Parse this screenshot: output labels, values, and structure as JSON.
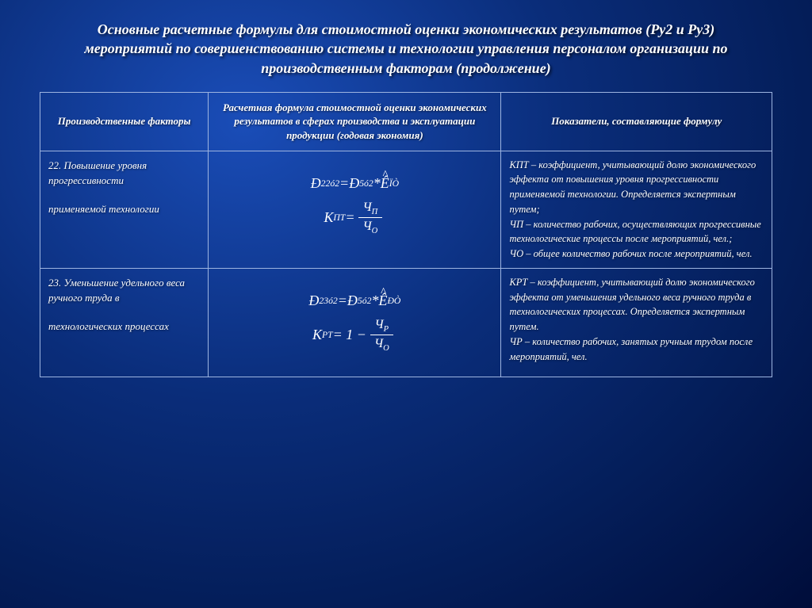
{
  "title": "Основные расчетные формулы для стоимостной оценки экономических результатов (Ру2 и Ру3) мероприятий по совершенствованию системы и технологии управления персоналом организации по производственным факторам (продолжение)",
  "headers": {
    "col1": "Производственные факторы",
    "col2": "Расчетная формула стоимостной оценки экономических результатов в сферах производства и эксплуатации продукции (годовая экономия)",
    "col3": "Показатели, составляющие формулу"
  },
  "rows": [
    {
      "factor_num": "22. Повышение уровня прогрессивности",
      "factor_sub": "применяемой технологии",
      "formula1_left": "Đ",
      "formula1_left_sup": "22",
      "formula1_left_sub": "ó2",
      "formula1_eq": " = ",
      "formula1_mid": "Đ",
      "formula1_mid_sup": "5",
      "formula1_mid_sub": "ó2",
      "formula1_star": " * ",
      "formula1_right": "Ê",
      "formula1_right_sub": " ÏÒ",
      "formula2_left": "К",
      "formula2_left_sub": "ПТ",
      "formula2_eq": " = ",
      "formula2_num": "Ч",
      "formula2_num_sub": "П",
      "formula2_den": "Ч",
      "formula2_den_sub": "О",
      "indicator": "КПТ – коэффициент, учитывающий долю экономического эффекта от повышения уровня прогрессивности применяемой технологии. Определяется экспертным путем;\nЧП – количество рабочих, осуществляющих прогрессивные технологические процессы после мероприятий, чел.;\nЧО – общее количество рабочих после мероприятий, чел."
    },
    {
      "factor_num": "23. Уменьшение удельного веса ручного труда в",
      "factor_sub": "технологических процессах",
      "formula1_left": "Đ",
      "formula1_left_sup": "23",
      "formula1_left_sub": "ó2",
      "formula1_eq": " = ",
      "formula1_mid": "Đ",
      "formula1_mid_sup": "5",
      "formula1_mid_sub": "ó2",
      "formula1_star": " * ",
      "formula1_right": "Ê",
      "formula1_right_sub": " ÐÒ",
      "formula2_left": "К",
      "formula2_left_sub": "РТ",
      "formula2_eq": " = 1 − ",
      "formula2_num": "Ч",
      "formula2_num_sub": "Р",
      "formula2_den": "Ч",
      "formula2_den_sub": "О",
      "indicator": "КРТ – коэффициент, учитывающий долю экономического эффекта от уменьшения удельного веса ручного труда в технологических процессах. Определяется экспертным путем.\nЧР – количество рабочих, занятых ручным трудом после мероприятий, чел."
    }
  ]
}
